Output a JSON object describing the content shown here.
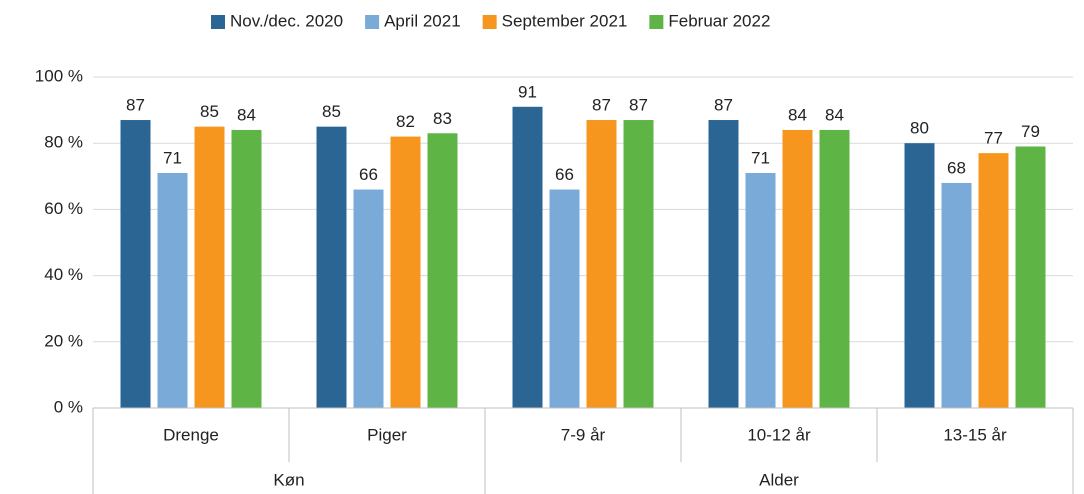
{
  "chart_data": {
    "type": "bar",
    "groups": [
      {
        "name": "Køn",
        "categories": [
          "Drenge",
          "Piger"
        ]
      },
      {
        "name": "Alder",
        "categories": [
          "7-9 år",
          "10-12 år",
          "13-15 år"
        ]
      }
    ],
    "series": [
      {
        "name": "Nov./dec. 2020",
        "color": "#2a6593",
        "values": [
          87,
          85,
          91,
          87,
          80
        ]
      },
      {
        "name": "April 2021",
        "color": "#7aaad8",
        "values": [
          71,
          66,
          66,
          71,
          68
        ]
      },
      {
        "name": "September 2021",
        "color": "#f7961f",
        "values": [
          85,
          82,
          87,
          84,
          77
        ]
      },
      {
        "name": "Februar 2022",
        "color": "#5fb446",
        "values": [
          84,
          83,
          87,
          84,
          79
        ]
      }
    ],
    "ylim": [
      0,
      100
    ],
    "yticks": [
      {
        "value": 0,
        "label": "0 %"
      },
      {
        "value": 20,
        "label": "20 %"
      },
      {
        "value": 40,
        "label": "40 %"
      },
      {
        "value": 60,
        "label": "60 %"
      },
      {
        "value": 80,
        "label": "80 %"
      },
      {
        "value": 100,
        "label": "100 %"
      }
    ],
    "grid": true,
    "legend": "top"
  }
}
